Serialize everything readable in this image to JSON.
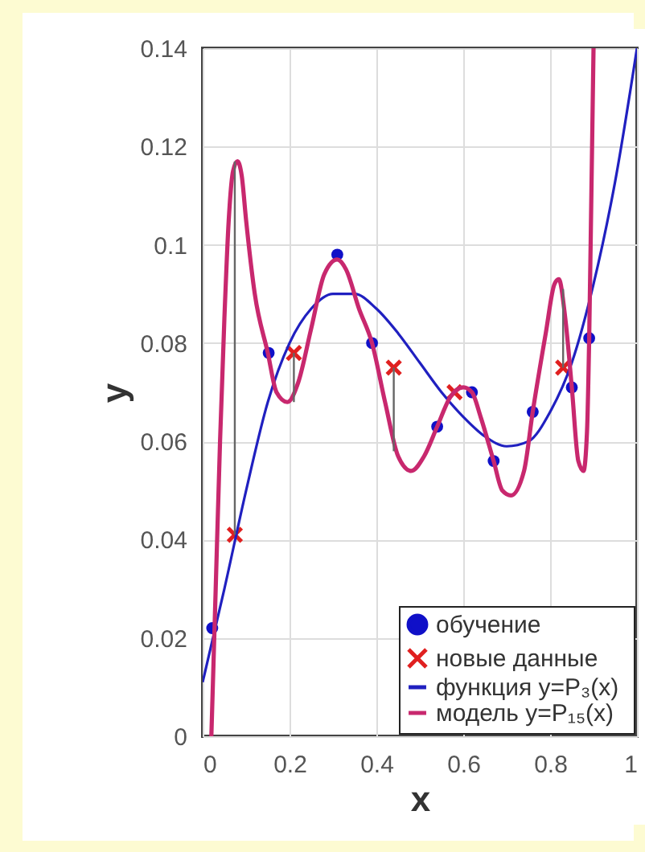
{
  "chart_data": {
    "type": "scatter",
    "xlabel": "x",
    "ylabel": "y",
    "xlim": [
      0,
      1
    ],
    "xticks": [
      0,
      0.2,
      0.4,
      0.6,
      0.8,
      1
    ],
    "ylim": [
      0,
      0.14
    ],
    "yticks": [
      0,
      0.02,
      0.04,
      0.06,
      0.08,
      0.1,
      0.12,
      0.14
    ],
    "grid": true,
    "legend": "bottom right",
    "series": [
      {
        "name": "обучение",
        "marker": "circle",
        "color": "#1010c8",
        "x": [
          0.022,
          0.152,
          0.31,
          0.39,
          0.54,
          0.62,
          0.67,
          0.76,
          0.85,
          0.89
        ],
        "values": [
          0.022,
          0.078,
          0.098,
          0.08,
          0.063,
          0.07,
          0.056,
          0.066,
          0.071,
          0.081
        ]
      },
      {
        "name": "новые данные",
        "marker": "cross",
        "color": "#e02020",
        "x": [
          0.074,
          0.21,
          0.44,
          0.58,
          0.83
        ],
        "values": [
          0.041,
          0.078,
          0.075,
          0.07,
          0.075
        ],
        "errors": [
          [
            0.041,
            0.117
          ],
          [
            0.068,
            0.078
          ],
          [
            0.058,
            0.075
          ],
          null,
          [
            0.075,
            0.091
          ]
        ]
      },
      {
        "name": "функция y=P₃(x)",
        "type": "line",
        "color": "#2020c0",
        "x": [
          0,
          0.05,
          0.1,
          0.15,
          0.2,
          0.25,
          0.3,
          0.35,
          0.4,
          0.45,
          0.5,
          0.55,
          0.6,
          0.65,
          0.7,
          0.75,
          0.8,
          0.85,
          0.9,
          0.95,
          1
        ],
        "values": [
          0.011,
          0.03,
          0.05,
          0.068,
          0.08,
          0.087,
          0.09,
          0.09,
          0.087,
          0.082,
          0.076,
          0.07,
          0.065,
          0.061,
          0.059,
          0.06,
          0.066,
          0.076,
          0.092,
          0.113,
          0.14
        ]
      },
      {
        "name": "модель   y=P₁₅(x)",
        "type": "line",
        "color": "#c8286e",
        "x": [
          0.02,
          0.03,
          0.04,
          0.05,
          0.06,
          0.07,
          0.08,
          0.09,
          0.1,
          0.12,
          0.15,
          0.17,
          0.195,
          0.22,
          0.25,
          0.28,
          0.31,
          0.33,
          0.36,
          0.39,
          0.42,
          0.45,
          0.48,
          0.51,
          0.54,
          0.57,
          0.6,
          0.62,
          0.64,
          0.67,
          0.69,
          0.71,
          0.74,
          0.76,
          0.79,
          0.81,
          0.82,
          0.835,
          0.85,
          0.865,
          0.877,
          0.885,
          0.89,
          0.895,
          0.9
        ],
        "values": [
          0,
          0.03,
          0.06,
          0.085,
          0.105,
          0.115,
          0.117,
          0.114,
          0.105,
          0.09,
          0.078,
          0.07,
          0.068,
          0.072,
          0.083,
          0.094,
          0.097,
          0.095,
          0.087,
          0.08,
          0.068,
          0.057,
          0.054,
          0.057,
          0.063,
          0.069,
          0.071,
          0.07,
          0.065,
          0.056,
          0.05,
          0.049,
          0.054,
          0.066,
          0.082,
          0.092,
          0.093,
          0.085,
          0.071,
          0.056,
          0.054,
          0.062,
          0.081,
          0.11,
          0.14
        ]
      }
    ]
  }
}
